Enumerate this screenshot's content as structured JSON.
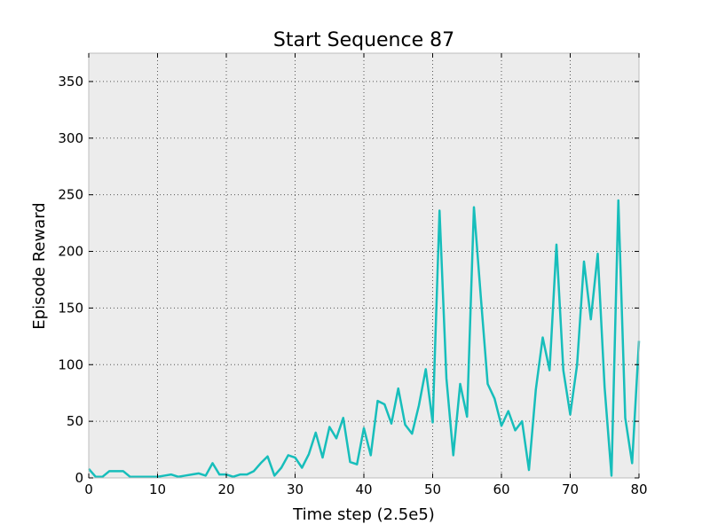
{
  "chart_data": {
    "type": "line",
    "title": "Start Sequence 87",
    "xlabel": "Time step (2.5e5)",
    "ylabel": "Episode Reward",
    "xlim": [
      0,
      80
    ],
    "ylim": [
      0,
      375
    ],
    "xticks": [
      0,
      10,
      20,
      30,
      40,
      50,
      60,
      70,
      80
    ],
    "yticks": [
      0,
      50,
      100,
      150,
      200,
      250,
      300,
      350
    ],
    "grid": true,
    "background_color": "#ececec",
    "series": [
      {
        "color": "#17bebb",
        "x": [
          0,
          1,
          2,
          3,
          4,
          5,
          6,
          7,
          8,
          9,
          10,
          11,
          12,
          13,
          14,
          15,
          16,
          17,
          18,
          19,
          20,
          21,
          22,
          23,
          24,
          25,
          26,
          27,
          28,
          29,
          30,
          31,
          32,
          33,
          34,
          35,
          36,
          37,
          38,
          39,
          40,
          41,
          42,
          43,
          44,
          45,
          46,
          47,
          48,
          49,
          50,
          51,
          52,
          53,
          54,
          55,
          56,
          57,
          58,
          59,
          60,
          61,
          62,
          63,
          64,
          65,
          66,
          67,
          68,
          69,
          70,
          71,
          72,
          73,
          74,
          75,
          76,
          77,
          78,
          79,
          80
        ],
        "values": [
          8,
          1,
          1,
          6,
          6,
          6,
          1,
          1,
          1,
          1,
          1,
          2,
          3,
          1,
          2,
          3,
          4,
          2,
          13,
          3,
          3,
          1,
          3,
          3,
          6,
          13,
          19,
          2,
          9,
          20,
          18,
          9,
          21,
          40,
          18,
          45,
          35,
          53,
          14,
          12,
          44,
          20,
          68,
          65,
          48,
          79,
          47,
          39,
          64,
          96,
          49,
          236,
          88,
          20,
          83,
          54,
          239,
          160,
          83,
          70,
          46,
          59,
          42,
          50,
          7,
          78,
          124,
          95,
          206,
          95,
          56,
          100,
          191,
          140,
          198,
          80,
          2,
          245,
          53,
          13,
          121
        ]
      }
    ]
  }
}
